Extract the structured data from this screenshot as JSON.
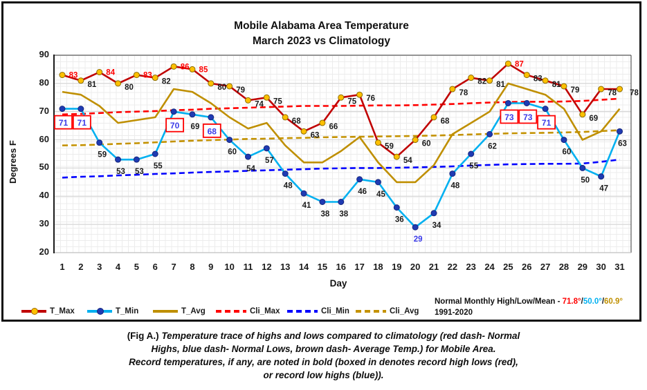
{
  "title": {
    "line1": "Mobile Alabama Area Temperature",
    "line2": "March 2023 vs Climatology"
  },
  "y_axis": {
    "label": "Degrees F",
    "ticks": [
      90,
      80,
      70,
      60,
      50,
      40,
      30,
      20
    ],
    "min": 20,
    "max": 90
  },
  "x_axis": {
    "label": "Day",
    "days": [
      1,
      2,
      3,
      4,
      5,
      6,
      7,
      8,
      9,
      10,
      11,
      12,
      13,
      14,
      15,
      16,
      17,
      18,
      19,
      20,
      21,
      22,
      23,
      24,
      25,
      26,
      27,
      28,
      29,
      30,
      31
    ]
  },
  "legend": {
    "items": [
      {
        "label": "T_Max",
        "color": "#C00000",
        "dashed": false,
        "marker": "#FFC000",
        "marker_stroke": "#9a6a00"
      },
      {
        "label": "T_Min",
        "color": "#00B0F0",
        "dashed": false,
        "marker": "#1F3BB3",
        "marker_stroke": "#16267d"
      },
      {
        "label": "T_Avg",
        "color": "#BF8F00",
        "dashed": false
      },
      {
        "label": "Cli_Max",
        "color": "#FF0000",
        "dashed": true
      },
      {
        "label": "Cli_Min",
        "color": "#0000FF",
        "dashed": true
      },
      {
        "label": "Cli_Avg",
        "color": "#C49200",
        "dashed": true
      }
    ]
  },
  "note": {
    "prefix": "Normal Monthly High/Low/Mean - ",
    "high": "71.8°",
    "slash1": "/",
    "low": "50.0°",
    "slash2": "/",
    "mean": "60.9°",
    "line2": "1991-2020",
    "high_color": "#FF0000",
    "low_color": "#00B0F0",
    "mean_color": "#BF8F00"
  },
  "caption": {
    "fig_label": "(Fig A.)",
    "line1": "Temperature trace of highs and lows compared to climatology (red dash- Normal",
    "line2": "Highs, blue dash- Normal Lows, brown dash- Average Temp.) for Mobile Area.",
    "line3": "Record temperatures, if any, are noted in bold (boxed in denotes record high lows (red),",
    "line4": "or record low highs (blue))."
  },
  "colors": {
    "t_max_line": "#C00000",
    "t_max_marker": "#FFC000",
    "t_min_line": "#00B0F0",
    "t_min_marker": "#1F3BB3",
    "t_avg_line": "#BF8F00",
    "cli_max_line": "#FF0000",
    "cli_min_line": "#0000FF",
    "cli_avg_line": "#C49200",
    "record_high_text": "#FF0000",
    "record_low_text": "#3B3BE8",
    "record_box": "#FF0000",
    "label_text": "#1a1a1a"
  },
  "chart_data": {
    "type": "line",
    "title": "Mobile Alabama Area Temperature March 2023 vs Climatology",
    "xlabel": "Day",
    "ylabel": "Degrees F",
    "xlim": [
      1,
      31
    ],
    "ylim": [
      20,
      90
    ],
    "grid": true,
    "legend_position": "bottom",
    "x": [
      1,
      2,
      3,
      4,
      5,
      6,
      7,
      8,
      9,
      10,
      11,
      12,
      13,
      14,
      15,
      16,
      17,
      18,
      19,
      20,
      21,
      22,
      23,
      24,
      25,
      26,
      27,
      28,
      29,
      30,
      31
    ],
    "record_high_color": "#FF0000",
    "record_low_high_text_color": "#3B3BE8",
    "record_box_color": "#FF0000",
    "series": [
      {
        "name": "T_Max",
        "style": "solid",
        "color": "#C00000",
        "marker_fill": "#FFC000",
        "labeled": true,
        "values": [
          83,
          81,
          84,
          80,
          83,
          82,
          86,
          85,
          80,
          79,
          74,
          75,
          68,
          63,
          66,
          75,
          76,
          59,
          54,
          60,
          68,
          78,
          82,
          81,
          87,
          83,
          81,
          79,
          69,
          78,
          78
        ],
        "record_days": [
          1,
          3,
          5,
          7,
          8,
          25
        ]
      },
      {
        "name": "T_Min",
        "style": "solid",
        "color": "#00B0F0",
        "marker_fill": "#1F3BB3",
        "labeled": true,
        "values": [
          71,
          71,
          59,
          53,
          53,
          55,
          70,
          69,
          68,
          60,
          54,
          57,
          48,
          41,
          38,
          38,
          46,
          45,
          36,
          29,
          34,
          48,
          55,
          62,
          73,
          73,
          71,
          60,
          50,
          47,
          63
        ],
        "boxed_days": [
          1,
          2,
          7,
          9,
          25,
          26,
          27
        ],
        "record_low_days": [
          20
        ]
      },
      {
        "name": "T_Avg",
        "style": "solid",
        "color": "#BF8F00",
        "labeled": false,
        "estimated": true,
        "values": [
          77,
          76,
          72,
          66,
          67,
          68,
          78,
          77,
          73,
          68,
          64,
          66,
          58,
          52,
          52,
          56,
          61,
          52,
          45,
          45,
          51,
          62,
          66,
          70,
          80,
          78,
          76,
          71,
          60,
          63,
          71
        ]
      },
      {
        "name": "Cli_Max",
        "style": "dashed",
        "color": "#FF0000",
        "labeled": false,
        "estimated": true,
        "values": [
          69,
          69.2,
          69.5,
          69.8,
          70,
          70.2,
          70.5,
          70.7,
          71,
          71.2,
          71.4,
          71.6,
          71.8,
          72,
          72,
          72,
          72.1,
          72.2,
          72.2,
          72.3,
          72.5,
          72.7,
          73,
          73.2,
          73.4,
          73.5,
          73.5,
          73.6,
          73.8,
          74.2,
          74.6
        ]
      },
      {
        "name": "Cli_Min",
        "style": "dashed",
        "color": "#0000FF",
        "labeled": false,
        "estimated": true,
        "values": [
          46.6,
          46.9,
          47.1,
          47.4,
          47.6,
          47.9,
          48.1,
          48.4,
          48.6,
          48.8,
          49,
          49.2,
          49.4,
          49.6,
          49.8,
          49.9,
          50,
          50,
          50.1,
          50.2,
          50.4,
          50.6,
          50.9,
          51.1,
          51.3,
          51.4,
          51.5,
          51.5,
          51.6,
          52.2,
          53
        ]
      },
      {
        "name": "Cli_Avg",
        "style": "dashed",
        "color": "#C49200",
        "labeled": false,
        "estimated": true,
        "values": [
          58,
          58.1,
          58.3,
          58.6,
          58.8,
          59.1,
          59.4,
          59.7,
          59.9,
          60.1,
          60.3,
          60.4,
          60.6,
          60.7,
          60.9,
          61,
          61.1,
          61.2,
          61.3,
          61.4,
          61.5,
          61.7,
          61.9,
          62.1,
          62.3,
          62.4,
          62.5,
          62.6,
          62.8,
          63.1,
          63.4
        ]
      }
    ]
  }
}
